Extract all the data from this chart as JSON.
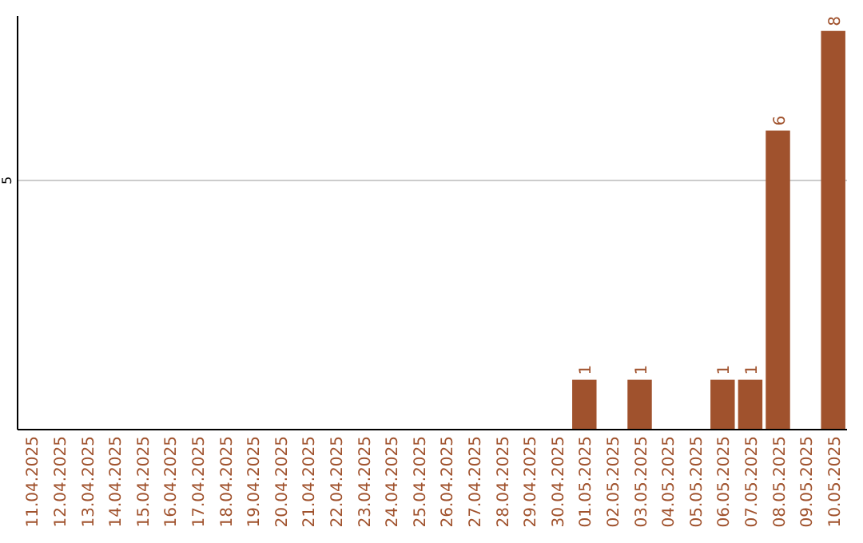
{
  "chart_data": {
    "type": "bar",
    "categories": [
      "11.04.2025",
      "12.04.2025",
      "13.04.2025",
      "14.04.2025",
      "15.04.2025",
      "16.04.2025",
      "17.04.2025",
      "18.04.2025",
      "19.04.2025",
      "20.04.2025",
      "21.04.2025",
      "22.04.2025",
      "23.04.2025",
      "24.04.2025",
      "25.04.2025",
      "26.04.2025",
      "27.04.2025",
      "28.04.2025",
      "29.04.2025",
      "30.04.2025",
      "01.05.2025",
      "02.05.2025",
      "03.05.2025",
      "04.05.2025",
      "05.05.2025",
      "06.05.2025",
      "07.05.2025",
      "08.05.2025",
      "09.05.2025",
      "10.05.2025"
    ],
    "values": [
      null,
      null,
      null,
      null,
      null,
      null,
      null,
      null,
      null,
      null,
      null,
      null,
      null,
      null,
      null,
      null,
      null,
      null,
      null,
      null,
      1,
      null,
      1,
      null,
      null,
      1,
      1,
      6,
      null,
      8
    ],
    "color": "#a0522d",
    "ylim": [
      0,
      8.3
    ],
    "yticks": [
      5
    ],
    "grid": "y",
    "data_labels": true
  }
}
